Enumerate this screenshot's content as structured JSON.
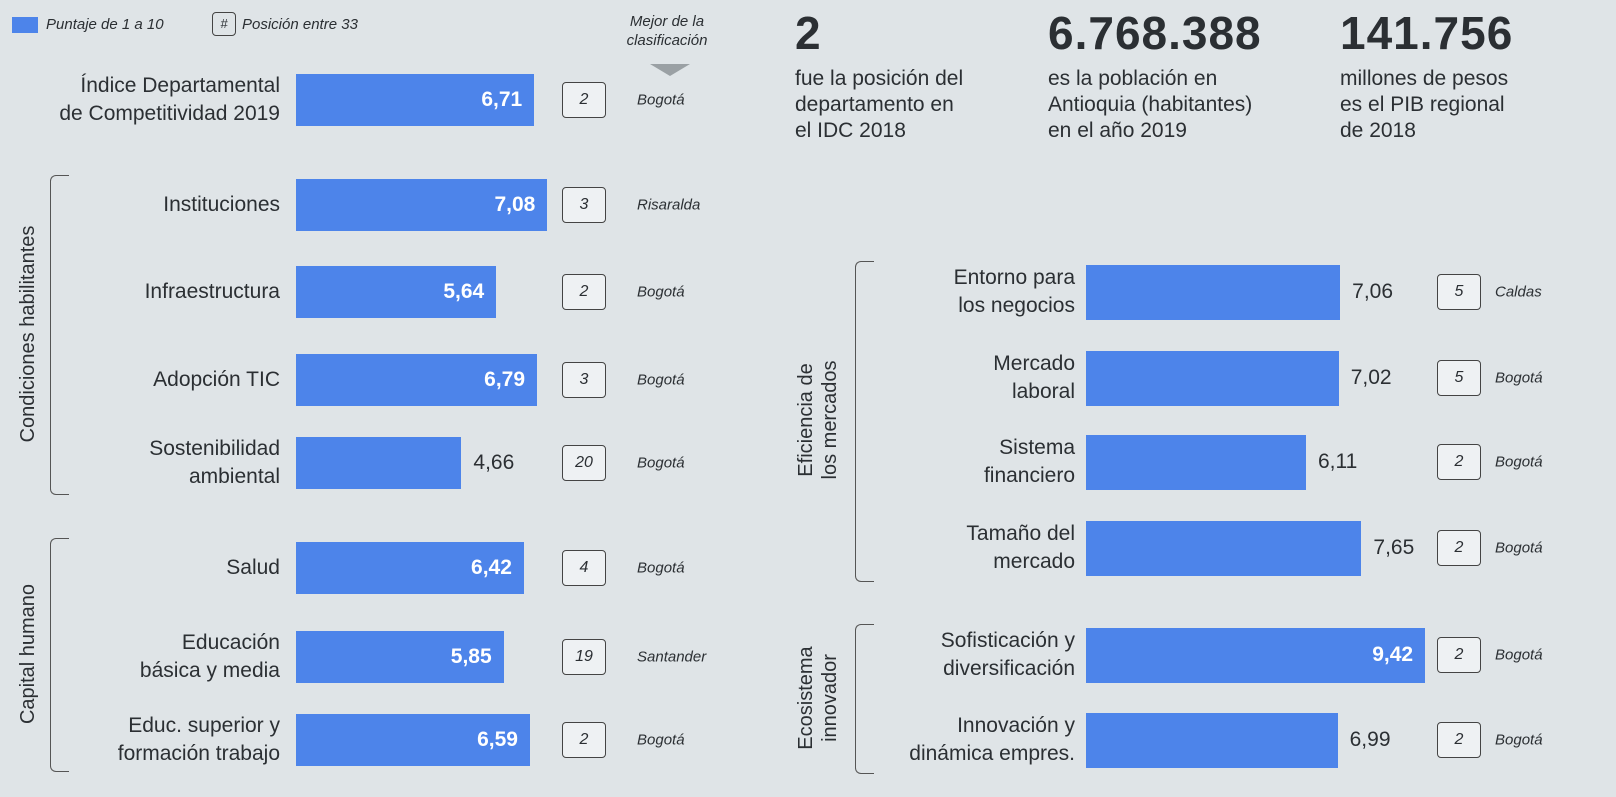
{
  "legend": {
    "score": "Puntaje de 1 a 10",
    "rank_icon": "#",
    "rank": "Posición entre 33",
    "best": "Mejor de la\nclasificación"
  },
  "stats": [
    {
      "value": "2",
      "text": "fue la posición del\ndepartamento en\nel IDC 2018"
    },
    {
      "value": "6.768.388",
      "text": "es la población en\nAntioquia (habitantes)\nen el año 2019"
    },
    {
      "value": "141.756",
      "text": "millones de pesos\nes el PIB regional\nde 2018"
    }
  ],
  "chart_data": [
    {
      "type": "bar",
      "orientation": "horizontal",
      "color": "#4d84ea",
      "xlim": [
        0,
        10
      ],
      "categories": [
        "Índice Departamental\nde Competitividad 2019",
        "Instituciones",
        "Infraestructura",
        "Adopción TIC",
        "Sostenibilidad\nambiental",
        "Salud",
        "Educación\nbásica y media",
        "Educ. superior y\nformación trabajo"
      ],
      "category_groups": [
        null,
        "Condiciones habilitantes",
        "Condiciones habilitantes",
        "Condiciones habilitantes",
        "Condiciones habilitantes",
        "Capital humano",
        "Capital humano",
        "Capital humano"
      ],
      "values": [
        6.71,
        7.08,
        5.64,
        6.79,
        4.66,
        6.42,
        5.85,
        6.59
      ],
      "value_labels": [
        "6,71",
        "7,08",
        "5,64",
        "6,79",
        "4,66",
        "6,42",
        "5,85",
        "6,59"
      ],
      "label_positions": [
        "inside",
        "inside",
        "inside",
        "inside",
        "outside",
        "inside",
        "inside",
        "inside"
      ],
      "ranks": [
        2,
        3,
        2,
        3,
        20,
        4,
        19,
        2
      ],
      "best": [
        "Bogotá",
        "Risaralda",
        "Bogotá",
        "Bogotá",
        "Bogotá",
        "Bogotá",
        "Santander",
        "Bogotá"
      ]
    },
    {
      "type": "bar",
      "orientation": "horizontal",
      "color": "#4d84ea",
      "xlim": [
        0,
        10
      ],
      "categories": [
        "Entorno para\nlos negocios",
        "Mercado\nlaboral",
        "Sistema\nfinanciero",
        "Tamaño del\nmercado",
        "Sofisticación y\ndiversificación",
        "Innovación y\ndinámica empres."
      ],
      "category_groups": [
        "Eficiencia de\nlos mercados",
        "Eficiencia de\nlos mercados",
        "Eficiencia de\nlos mercados",
        "Eficiencia de\nlos mercados",
        "Ecosistema\ninnovador",
        "Ecosistema\ninnovador"
      ],
      "values": [
        7.06,
        7.02,
        6.11,
        7.65,
        9.42,
        6.99
      ],
      "value_labels": [
        "7,06",
        "7,02",
        "6,11",
        "7,65",
        "9,42",
        "6,99"
      ],
      "label_positions": [
        "outside",
        "outside",
        "outside",
        "outside",
        "inside",
        "outside"
      ],
      "ranks": [
        5,
        5,
        2,
        2,
        2,
        2
      ],
      "best": [
        "Caldas",
        "Bogotá",
        "Bogotá",
        "Bogotá",
        "Bogotá",
        "Bogotá"
      ]
    }
  ]
}
